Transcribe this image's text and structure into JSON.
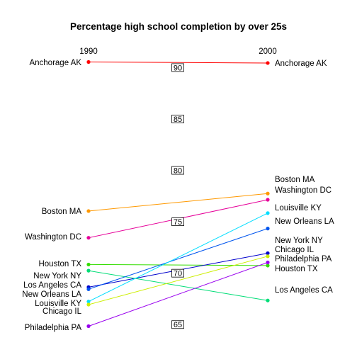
{
  "chart_data": {
    "type": "line",
    "title": "Percentage high school completion by over 25s",
    "x": [
      "1990",
      "2000"
    ],
    "ylim": [
      63.5,
      91
    ],
    "yticks": [
      "65",
      "70",
      "75",
      "80",
      "85",
      "90"
    ],
    "grid": false,
    "legend": "none",
    "series": [
      {
        "name": "Anchorage AK",
        "color": "#FF0000",
        "values": [
          90.2,
          90.1
        ]
      },
      {
        "name": "Boston MA",
        "color": "#FF9900",
        "values": [
          75.7,
          77.4
        ]
      },
      {
        "name": "Washington DC",
        "color": "#E60099",
        "values": [
          73.1,
          76.8
        ]
      },
      {
        "name": "Houston TX",
        "color": "#33DD00",
        "values": [
          70.5,
          70.4
        ]
      },
      {
        "name": "New York NY",
        "color": "#0000CC",
        "values": [
          68.3,
          71.6
        ]
      },
      {
        "name": "Los Angeles CA",
        "color": "#00DD77",
        "values": [
          69.9,
          67.0
        ]
      },
      {
        "name": "New Orleans LA",
        "color": "#0055EE",
        "values": [
          68.1,
          74.0
        ]
      },
      {
        "name": "Louisville KY",
        "color": "#00DDFF",
        "values": [
          66.9,
          75.5
        ]
      },
      {
        "name": "Chicago IL",
        "color": "#CCEE00",
        "values": [
          66.6,
          71.3
        ]
      },
      {
        "name": "Philadelphia PA",
        "color": "#9900EE",
        "values": [
          64.5,
          70.7
        ]
      }
    ],
    "left_labels": [
      {
        "text": "Anchorage AK"
      },
      {
        "text": "Boston MA"
      },
      {
        "text": "Washington DC"
      },
      {
        "text": "Houston TX"
      },
      {
        "text": "New York NY"
      },
      {
        "text": "Los Angeles CA"
      },
      {
        "text": "New Orleans LA"
      },
      {
        "text": "Louisville KY"
      },
      {
        "text": "Chicago IL"
      },
      {
        "text": "Philadelphia PA"
      }
    ],
    "right_labels": [
      {
        "text": "Anchorage AK"
      },
      {
        "text": "Boston MA"
      },
      {
        "text": "Washington DC"
      },
      {
        "text": "Louisville KY"
      },
      {
        "text": "New Orleans LA"
      },
      {
        "text": "New York NY"
      },
      {
        "text": "Chicago IL"
      },
      {
        "text": "Philadelphia PA"
      },
      {
        "text": "Houston TX"
      },
      {
        "text": "Los Angeles CA"
      }
    ]
  }
}
